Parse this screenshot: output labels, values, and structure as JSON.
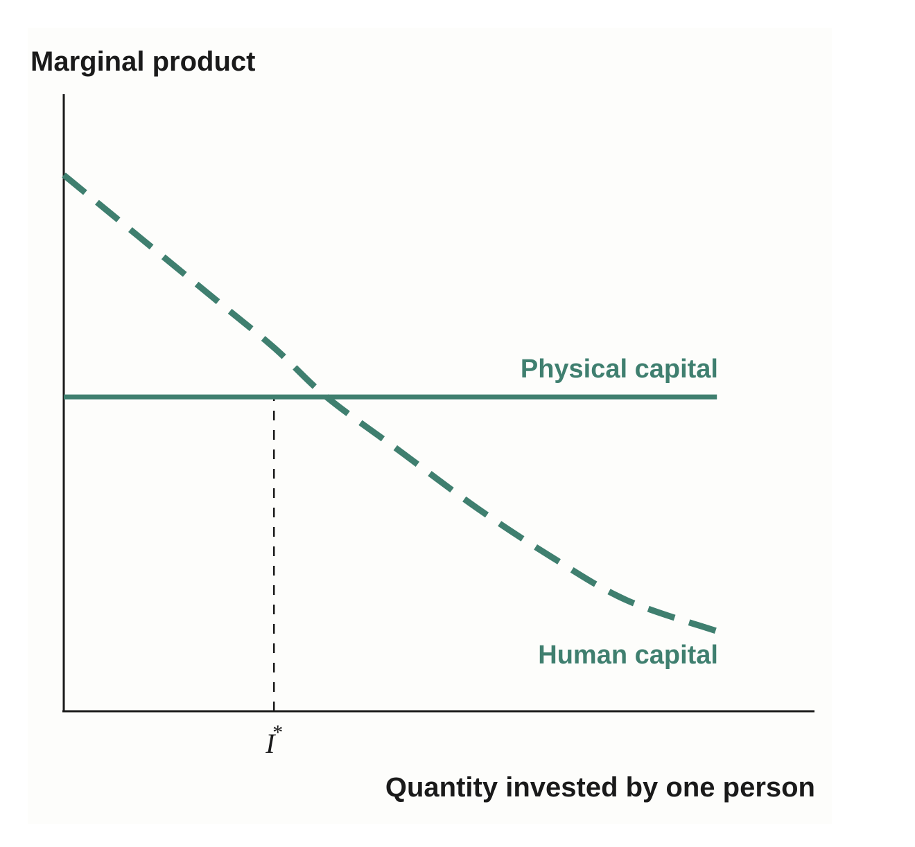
{
  "chart_data": {
    "type": "line",
    "title": "",
    "ylabel": "Marginal product",
    "xlabel": "Quantity invested by one person",
    "xlim": [
      0,
      1
    ],
    "ylim": [
      0,
      1
    ],
    "grid": false,
    "legend": "none",
    "series": [
      {
        "name": "Physical capital",
        "style": "solid",
        "color": "#3f7f6f",
        "x": [
          0,
          0.87
        ],
        "y": [
          0.51,
          0.51
        ]
      },
      {
        "name": "Human capital",
        "style": "dashed",
        "color": "#3f7f6f",
        "x": [
          0,
          0.1,
          0.2,
          0.28,
          0.35,
          0.45,
          0.55,
          0.65,
          0.75,
          0.87
        ],
        "y": [
          0.87,
          0.77,
          0.67,
          0.59,
          0.51,
          0.42,
          0.33,
          0.25,
          0.18,
          0.13
        ]
      }
    ],
    "x_ticks": [
      {
        "value": 0.28,
        "label": "I",
        "superscript": "*"
      }
    ],
    "reference_lines": [
      {
        "orientation": "vertical",
        "x": 0.28,
        "from_y": 0,
        "to_y": 0.51,
        "style": "dashed",
        "color": "#1a1a1a"
      }
    ]
  }
}
